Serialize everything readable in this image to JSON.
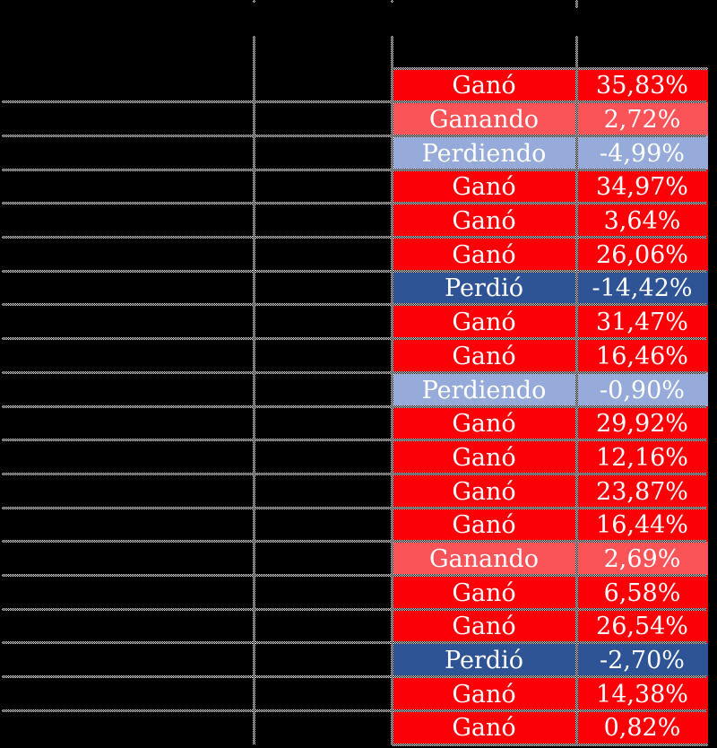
{
  "colors": {
    "won": "#FB0107",
    "winning": "#FA5358",
    "losing": "#96ABD9",
    "lost": "#2E5496",
    "text": "#FFFFFF",
    "background": "#000000",
    "gridline_light": "#E6E6E6",
    "gridline_dark": "#000000"
  },
  "rows": [
    {
      "status": "Ganó",
      "value": "35,83%",
      "state": "won"
    },
    {
      "status": "Ganando",
      "value": "2,72%",
      "state": "winning"
    },
    {
      "status": "Perdiendo",
      "value": "-4,99%",
      "state": "losing"
    },
    {
      "status": "Ganó",
      "value": "34,97%",
      "state": "won"
    },
    {
      "status": "Ganó",
      "value": "3,64%",
      "state": "won"
    },
    {
      "status": "Ganó",
      "value": "26,06%",
      "state": "won"
    },
    {
      "status": "Perdió",
      "value": "-14,42%",
      "state": "lost"
    },
    {
      "status": "Ganó",
      "value": "31,47%",
      "state": "won"
    },
    {
      "status": "Ganó",
      "value": "16,46%",
      "state": "won"
    },
    {
      "status": "Perdiendo",
      "value": "-0,90%",
      "state": "losing"
    },
    {
      "status": "Ganó",
      "value": "29,92%",
      "state": "won"
    },
    {
      "status": "Ganó",
      "value": "12,16%",
      "state": "won"
    },
    {
      "status": "Ganó",
      "value": "23,87%",
      "state": "won"
    },
    {
      "status": "Ganó",
      "value": "16,44%",
      "state": "won"
    },
    {
      "status": "Ganando",
      "value": "2,69%",
      "state": "winning"
    },
    {
      "status": "Ganó",
      "value": "6,58%",
      "state": "won"
    },
    {
      "status": "Ganó",
      "value": "26,54%",
      "state": "won"
    },
    {
      "status": "Perdió",
      "value": "-2,70%",
      "state": "lost"
    },
    {
      "status": "Ganó",
      "value": "14,38%",
      "state": "won"
    },
    {
      "status": "Ganó",
      "value": "0,82%",
      "state": "won"
    }
  ]
}
